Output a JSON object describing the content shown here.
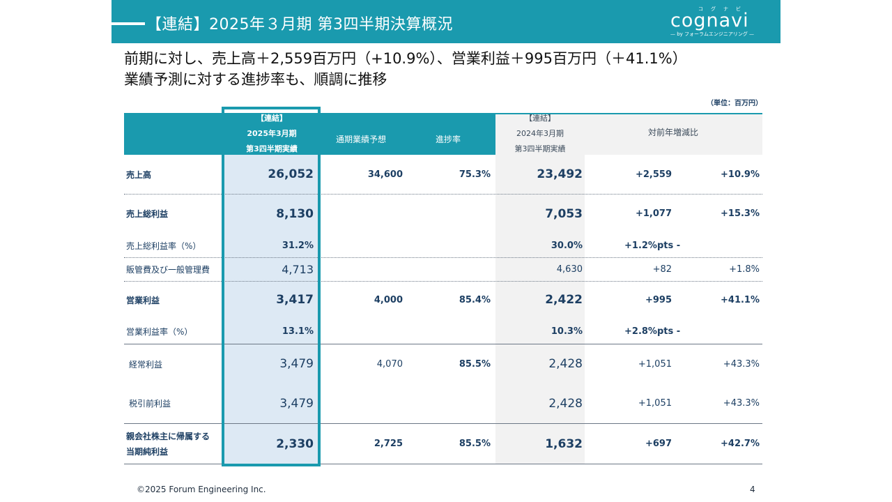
{
  "header": {
    "title": "【連結】2025年３月期 第3四半期決算概況",
    "logo": {
      "name": "cognavi",
      "ruby": "コグナビ",
      "tagline": "— by フォーラムエンジニアリング —"
    }
  },
  "headline": {
    "line1": "前期に対し、売上高＋2,559百万円（+10.9%）、営業利益＋995百万円（＋41.1%）",
    "line2": "業績予測に対する進捗率も、順調に推移"
  },
  "unit": "（単位：百万円）",
  "table": {
    "headers": {
      "current": [
        "【連結】",
        "2025年3月期",
        "第3四半期実績"
      ],
      "forecast": "通期業績予想",
      "progress": "進捗率",
      "previous": [
        "【連結】",
        "2024年3月期",
        "第3四半期実績"
      ],
      "yoy": "対前年増減比"
    },
    "rows": [
      {
        "label": "売上高",
        "current": "26,052",
        "forecast": "34,600",
        "progress": "75.3%",
        "previous": "23,492",
        "diff": "+2,559",
        "rate": "+10.9%"
      },
      {
        "label": "売上総利益",
        "current": "8,130",
        "forecast": "",
        "progress": "",
        "previous": "7,053",
        "diff": "+1,077",
        "rate": "+15.3%"
      },
      {
        "label": "売上総利益率（%）",
        "current": "31.2%",
        "forecast": "",
        "progress": "",
        "previous": "30.0%",
        "diff": "+1.2%pts -",
        "rate": ""
      },
      {
        "label": "販管費及び一般管理費",
        "current": "4,713",
        "forecast": "",
        "progress": "",
        "previous": "4,630",
        "diff": "+82",
        "rate": "+1.8%"
      },
      {
        "label": "営業利益",
        "current": "3,417",
        "forecast": "4,000",
        "progress": "85.4%",
        "previous": "2,422",
        "diff": "+995",
        "rate": "+41.1%"
      },
      {
        "label": "営業利益率（%）",
        "current": "13.1%",
        "forecast": "",
        "progress": "",
        "previous": "10.3%",
        "diff": "+2.8%pts -",
        "rate": ""
      },
      {
        "label": "経常利益",
        "current": "3,479",
        "forecast": "4,070",
        "progress": "85.5%",
        "previous": "2,428",
        "diff": "+1,051",
        "rate": "+43.3%"
      },
      {
        "label": "税引前利益",
        "current": "3,479",
        "forecast": "",
        "progress": "",
        "previous": "2,428",
        "diff": "+1,051",
        "rate": "+43.3%"
      },
      {
        "label": [
          "親会社株主に帰属する",
          "当期純利益"
        ],
        "current": "2,330",
        "forecast": "2,725",
        "progress": "85.5%",
        "previous": "1,632",
        "diff": "+697",
        "rate": "+42.7%"
      }
    ]
  },
  "footer": {
    "copyright": "©2025 Forum Engineering Inc.",
    "page": "4"
  }
}
